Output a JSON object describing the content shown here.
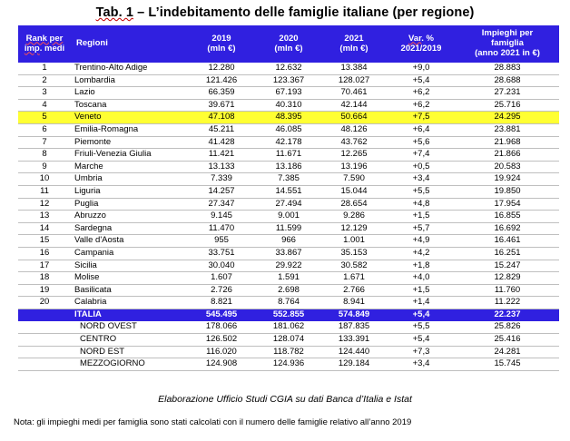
{
  "title": {
    "tab": "Tab. 1",
    "rest": " – L’indebitamento delle famiglie italiane (per regione)"
  },
  "headers": {
    "rank_line1": "Rank per",
    "rank_line2_a": "imp",
    "rank_line2_b": ". medi",
    "regioni": "Regioni",
    "y2019": "2019",
    "y2020": "2020",
    "y2021": "2021",
    "unit": "(mln €)",
    "var_a": "Var",
    "var_b": ". %",
    "var_period": "2021/2019",
    "imp_line1": "Impieghi per",
    "imp_line2": "famiglia",
    "imp_line3": "(anno 2021 in €)"
  },
  "rows": [
    {
      "rank": "1",
      "region": "Trentino-Alto Adige",
      "v2019": "12.280",
      "v2020": "12.632",
      "v2021": "13.384",
      "var": "+9,0",
      "imp": "28.883"
    },
    {
      "rank": "2",
      "region": "Lombardia",
      "v2019": "121.426",
      "v2020": "123.367",
      "v2021": "128.027",
      "var": "+5,4",
      "imp": "28.688"
    },
    {
      "rank": "3",
      "region": "Lazio",
      "v2019": "66.359",
      "v2020": "67.193",
      "v2021": "70.461",
      "var": "+6,2",
      "imp": "27.231"
    },
    {
      "rank": "4",
      "region": "Toscana",
      "v2019": "39.671",
      "v2020": "40.310",
      "v2021": "42.144",
      "var": "+6,2",
      "imp": "25.716"
    },
    {
      "rank": "5",
      "region": "Veneto",
      "v2019": "47.108",
      "v2020": "48.395",
      "v2021": "50.664",
      "var": "+7,5",
      "imp": "24.295"
    },
    {
      "rank": "6",
      "region": "Emilia-Romagna",
      "v2019": "45.211",
      "v2020": "46.085",
      "v2021": "48.126",
      "var": "+6,4",
      "imp": "23.881"
    },
    {
      "rank": "7",
      "region": "Piemonte",
      "v2019": "41.428",
      "v2020": "42.178",
      "v2021": "43.762",
      "var": "+5,6",
      "imp": "21.968"
    },
    {
      "rank": "8",
      "region": "Friuli-Venezia Giulia",
      "v2019": "11.421",
      "v2020": "11.671",
      "v2021": "12.265",
      "var": "+7,4",
      "imp": "21.866"
    },
    {
      "rank": "9",
      "region": "Marche",
      "v2019": "13.133",
      "v2020": "13.186",
      "v2021": "13.196",
      "var": "+0,5",
      "imp": "20.583"
    },
    {
      "rank": "10",
      "region": "Umbria",
      "v2019": "7.339",
      "v2020": "7.385",
      "v2021": "7.590",
      "var": "+3,4",
      "imp": "19.924"
    },
    {
      "rank": "11",
      "region": "Liguria",
      "v2019": "14.257",
      "v2020": "14.551",
      "v2021": "15.044",
      "var": "+5,5",
      "imp": "19.850"
    },
    {
      "rank": "12",
      "region": "Puglia",
      "v2019": "27.347",
      "v2020": "27.494",
      "v2021": "28.654",
      "var": "+4,8",
      "imp": "17.954"
    },
    {
      "rank": "13",
      "region": "Abruzzo",
      "v2019": "9.145",
      "v2020": "9.001",
      "v2021": "9.286",
      "var": "+1,5",
      "imp": "16.855"
    },
    {
      "rank": "14",
      "region": "Sardegna",
      "v2019": "11.470",
      "v2020": "11.599",
      "v2021": "12.129",
      "var": "+5,7",
      "imp": "16.692"
    },
    {
      "rank": "15",
      "region": "Valle d'Aosta",
      "v2019": "955",
      "v2020": "966",
      "v2021": "1.001",
      "var": "+4,9",
      "imp": "16.461"
    },
    {
      "rank": "16",
      "region": "Campania",
      "v2019": "33.751",
      "v2020": "33.867",
      "v2021": "35.153",
      "var": "+4,2",
      "imp": "16.251"
    },
    {
      "rank": "17",
      "region": "Sicilia",
      "v2019": "30.040",
      "v2020": "29.922",
      "v2021": "30.582",
      "var": "+1,8",
      "imp": "15.247"
    },
    {
      "rank": "18",
      "region": "Molise",
      "v2019": "1.607",
      "v2020": "1.591",
      "v2021": "1.671",
      "var": "+4,0",
      "imp": "12.829"
    },
    {
      "rank": "19",
      "region": "Basilicata",
      "v2019": "2.726",
      "v2020": "2.698",
      "v2021": "2.766",
      "var": "+1,5",
      "imp": "11.760"
    },
    {
      "rank": "20",
      "region": "Calabria",
      "v2019": "8.821",
      "v2020": "8.764",
      "v2021": "8.941",
      "var": "+1,4",
      "imp": "11.222"
    }
  ],
  "total": {
    "region": "ITALIA",
    "v2019": "545.495",
    "v2020": "552.855",
    "v2021": "574.849",
    "var": "+5,4",
    "imp": "22.237"
  },
  "macro": [
    {
      "region": "NORD OVEST",
      "v2019": "178.066",
      "v2020": "181.062",
      "v2021": "187.835",
      "var": "+5,5",
      "imp": "25.826"
    },
    {
      "region": "CENTRO",
      "v2019": "126.502",
      "v2020": "128.074",
      "v2021": "133.391",
      "var": "+5,4",
      "imp": "25.416"
    },
    {
      "region": "NORD EST",
      "v2019": "116.020",
      "v2020": "118.782",
      "v2021": "124.440",
      "var": "+7,3",
      "imp": "24.281"
    },
    {
      "region": "MEZZOGIORNO",
      "v2019": "124.908",
      "v2020": "124.936",
      "v2021": "129.184",
      "var": "+3,4",
      "imp": "15.745"
    }
  ],
  "highlight_color": "#ffff33",
  "header_color": "#3020e0",
  "source": "Elaborazione Ufficio Studi CGIA su dati Banca d’Italia e Istat",
  "note": "Nota: gli impieghi medi per famiglia sono stati calcolati con il numero delle famiglie relativo all’anno 2019"
}
